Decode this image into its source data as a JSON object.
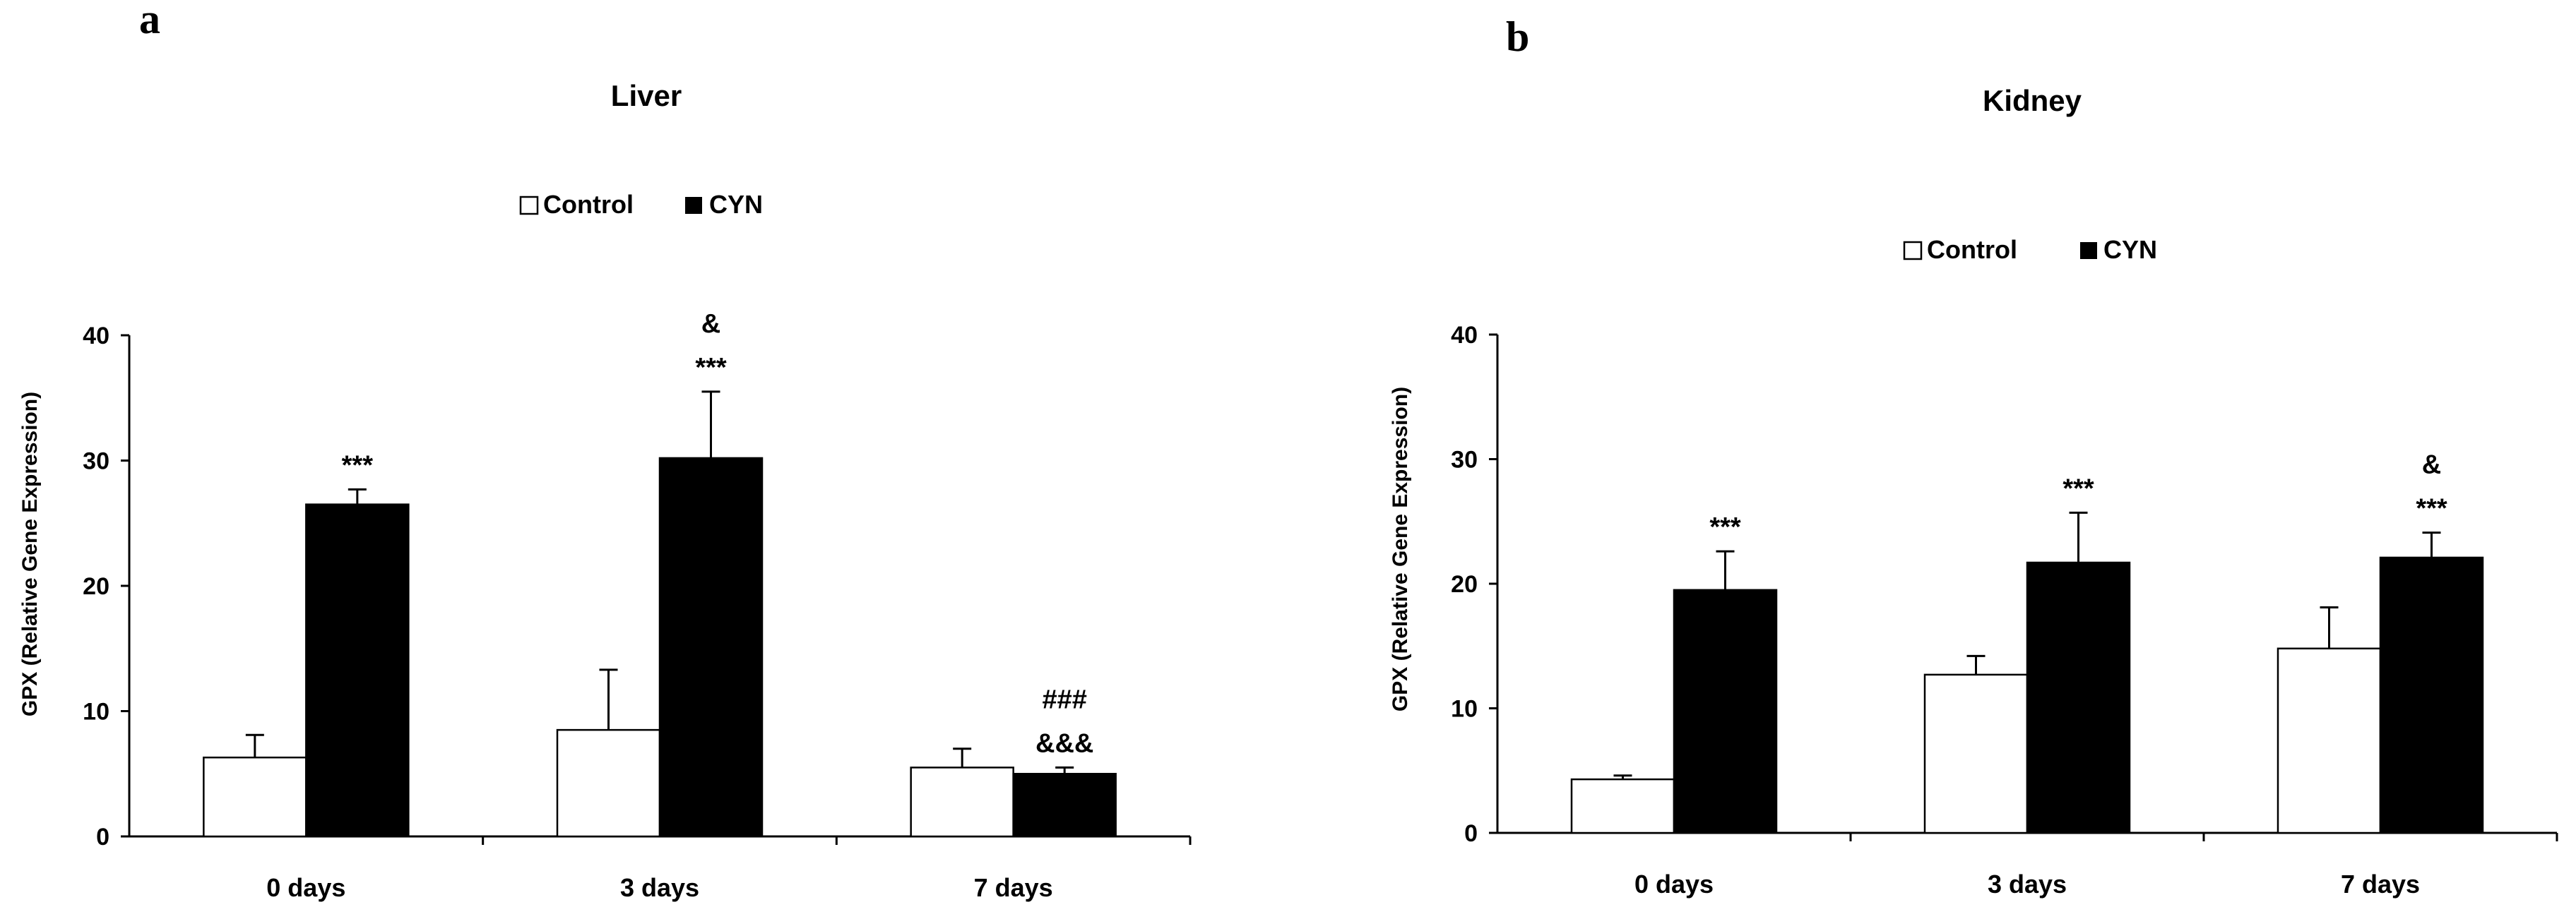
{
  "chart_data": [
    {
      "type": "bar",
      "panel_label": "a",
      "title": "Liver",
      "ylabel": "GPX (Relative Gene Expression)",
      "xlabel": "",
      "ylim": [
        0,
        40
      ],
      "yticks": [
        "0",
        "10",
        "20",
        "30",
        "40"
      ],
      "categories": [
        "0 days",
        "3 days",
        "7 days"
      ],
      "legend_position": "top-center",
      "grid": false,
      "series": [
        {
          "name": "Control",
          "color": "#ffffff",
          "values": [
            6.3,
            8.5,
            5.5
          ],
          "errors": [
            1.8,
            4.8,
            1.5
          ]
        },
        {
          "name": "CYN",
          "color": "#000000",
          "values": [
            26.5,
            30.2,
            5.0
          ],
          "errors": [
            1.2,
            5.3,
            0.5
          ]
        }
      ],
      "annotations": [
        {
          "category": 0,
          "series": 1,
          "lines": [
            "***"
          ]
        },
        {
          "category": 1,
          "series": 1,
          "lines": [
            "&",
            "***"
          ]
        },
        {
          "category": 2,
          "series": 1,
          "lines": [
            "###",
            "&&&"
          ]
        }
      ]
    },
    {
      "type": "bar",
      "panel_label": "b",
      "title": "Kidney",
      "ylabel": "GPX (Relative Gene Expression)",
      "xlabel": "",
      "ylim": [
        0,
        40
      ],
      "yticks": [
        "0",
        "10",
        "20",
        "30",
        "40"
      ],
      "categories": [
        "0 days",
        "3 days",
        "7 days"
      ],
      "legend_position": "top-center",
      "grid": false,
      "series": [
        {
          "name": "Control",
          "color": "#ffffff",
          "values": [
            4.3,
            12.7,
            14.8
          ],
          "errors": [
            0.3,
            1.5,
            3.3
          ]
        },
        {
          "name": "CYN",
          "color": "#000000",
          "values": [
            19.5,
            21.7,
            22.1
          ],
          "errors": [
            3.1,
            4.0,
            2.0
          ]
        }
      ],
      "annotations": [
        {
          "category": 0,
          "series": 1,
          "lines": [
            "***"
          ]
        },
        {
          "category": 1,
          "series": 1,
          "lines": [
            "***"
          ]
        },
        {
          "category": 2,
          "series": 1,
          "lines": [
            "&",
            "***"
          ]
        }
      ]
    }
  ]
}
